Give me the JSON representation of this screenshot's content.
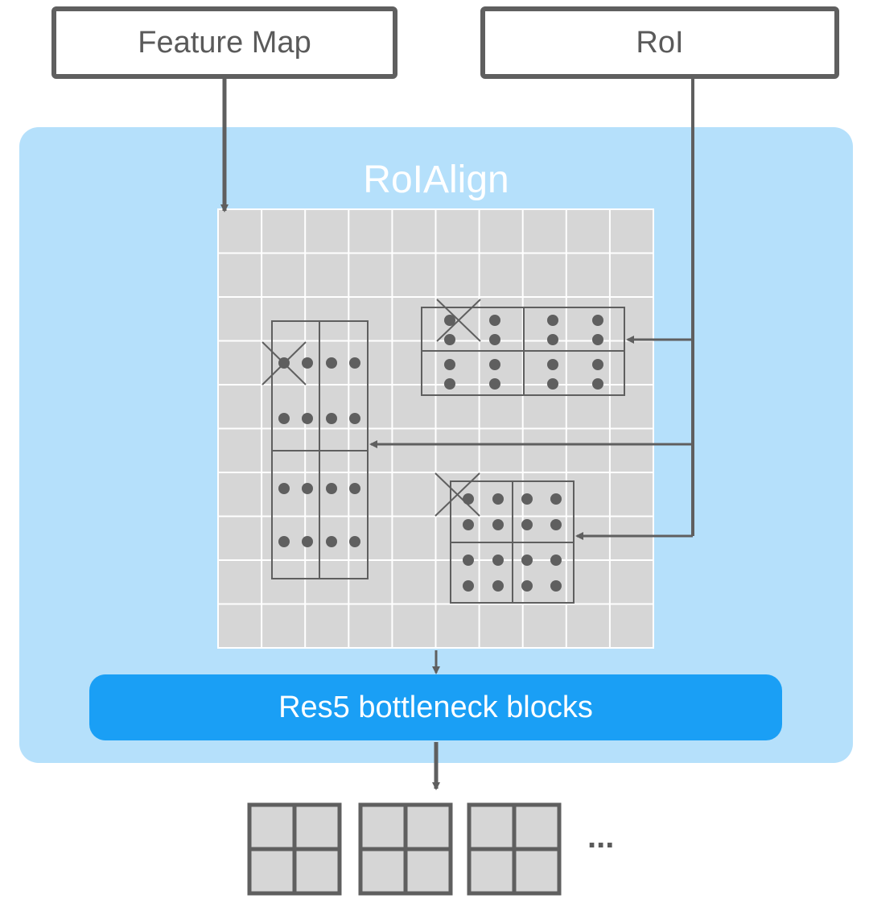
{
  "inputs": {
    "feature_map_label": "Feature Map",
    "roi_label": "RoI"
  },
  "roi_align": {
    "title": "RoIAlign"
  },
  "res5": {
    "label": "Res5 bottleneck blocks"
  },
  "outputs": {
    "ellipsis": "..."
  },
  "colors": {
    "panel": "#b5e0fb",
    "res5": "#1a9ff5",
    "grid_fill": "#d6d6d6",
    "stroke": "#5f5f5f",
    "text_dark": "#5a5a5a"
  }
}
